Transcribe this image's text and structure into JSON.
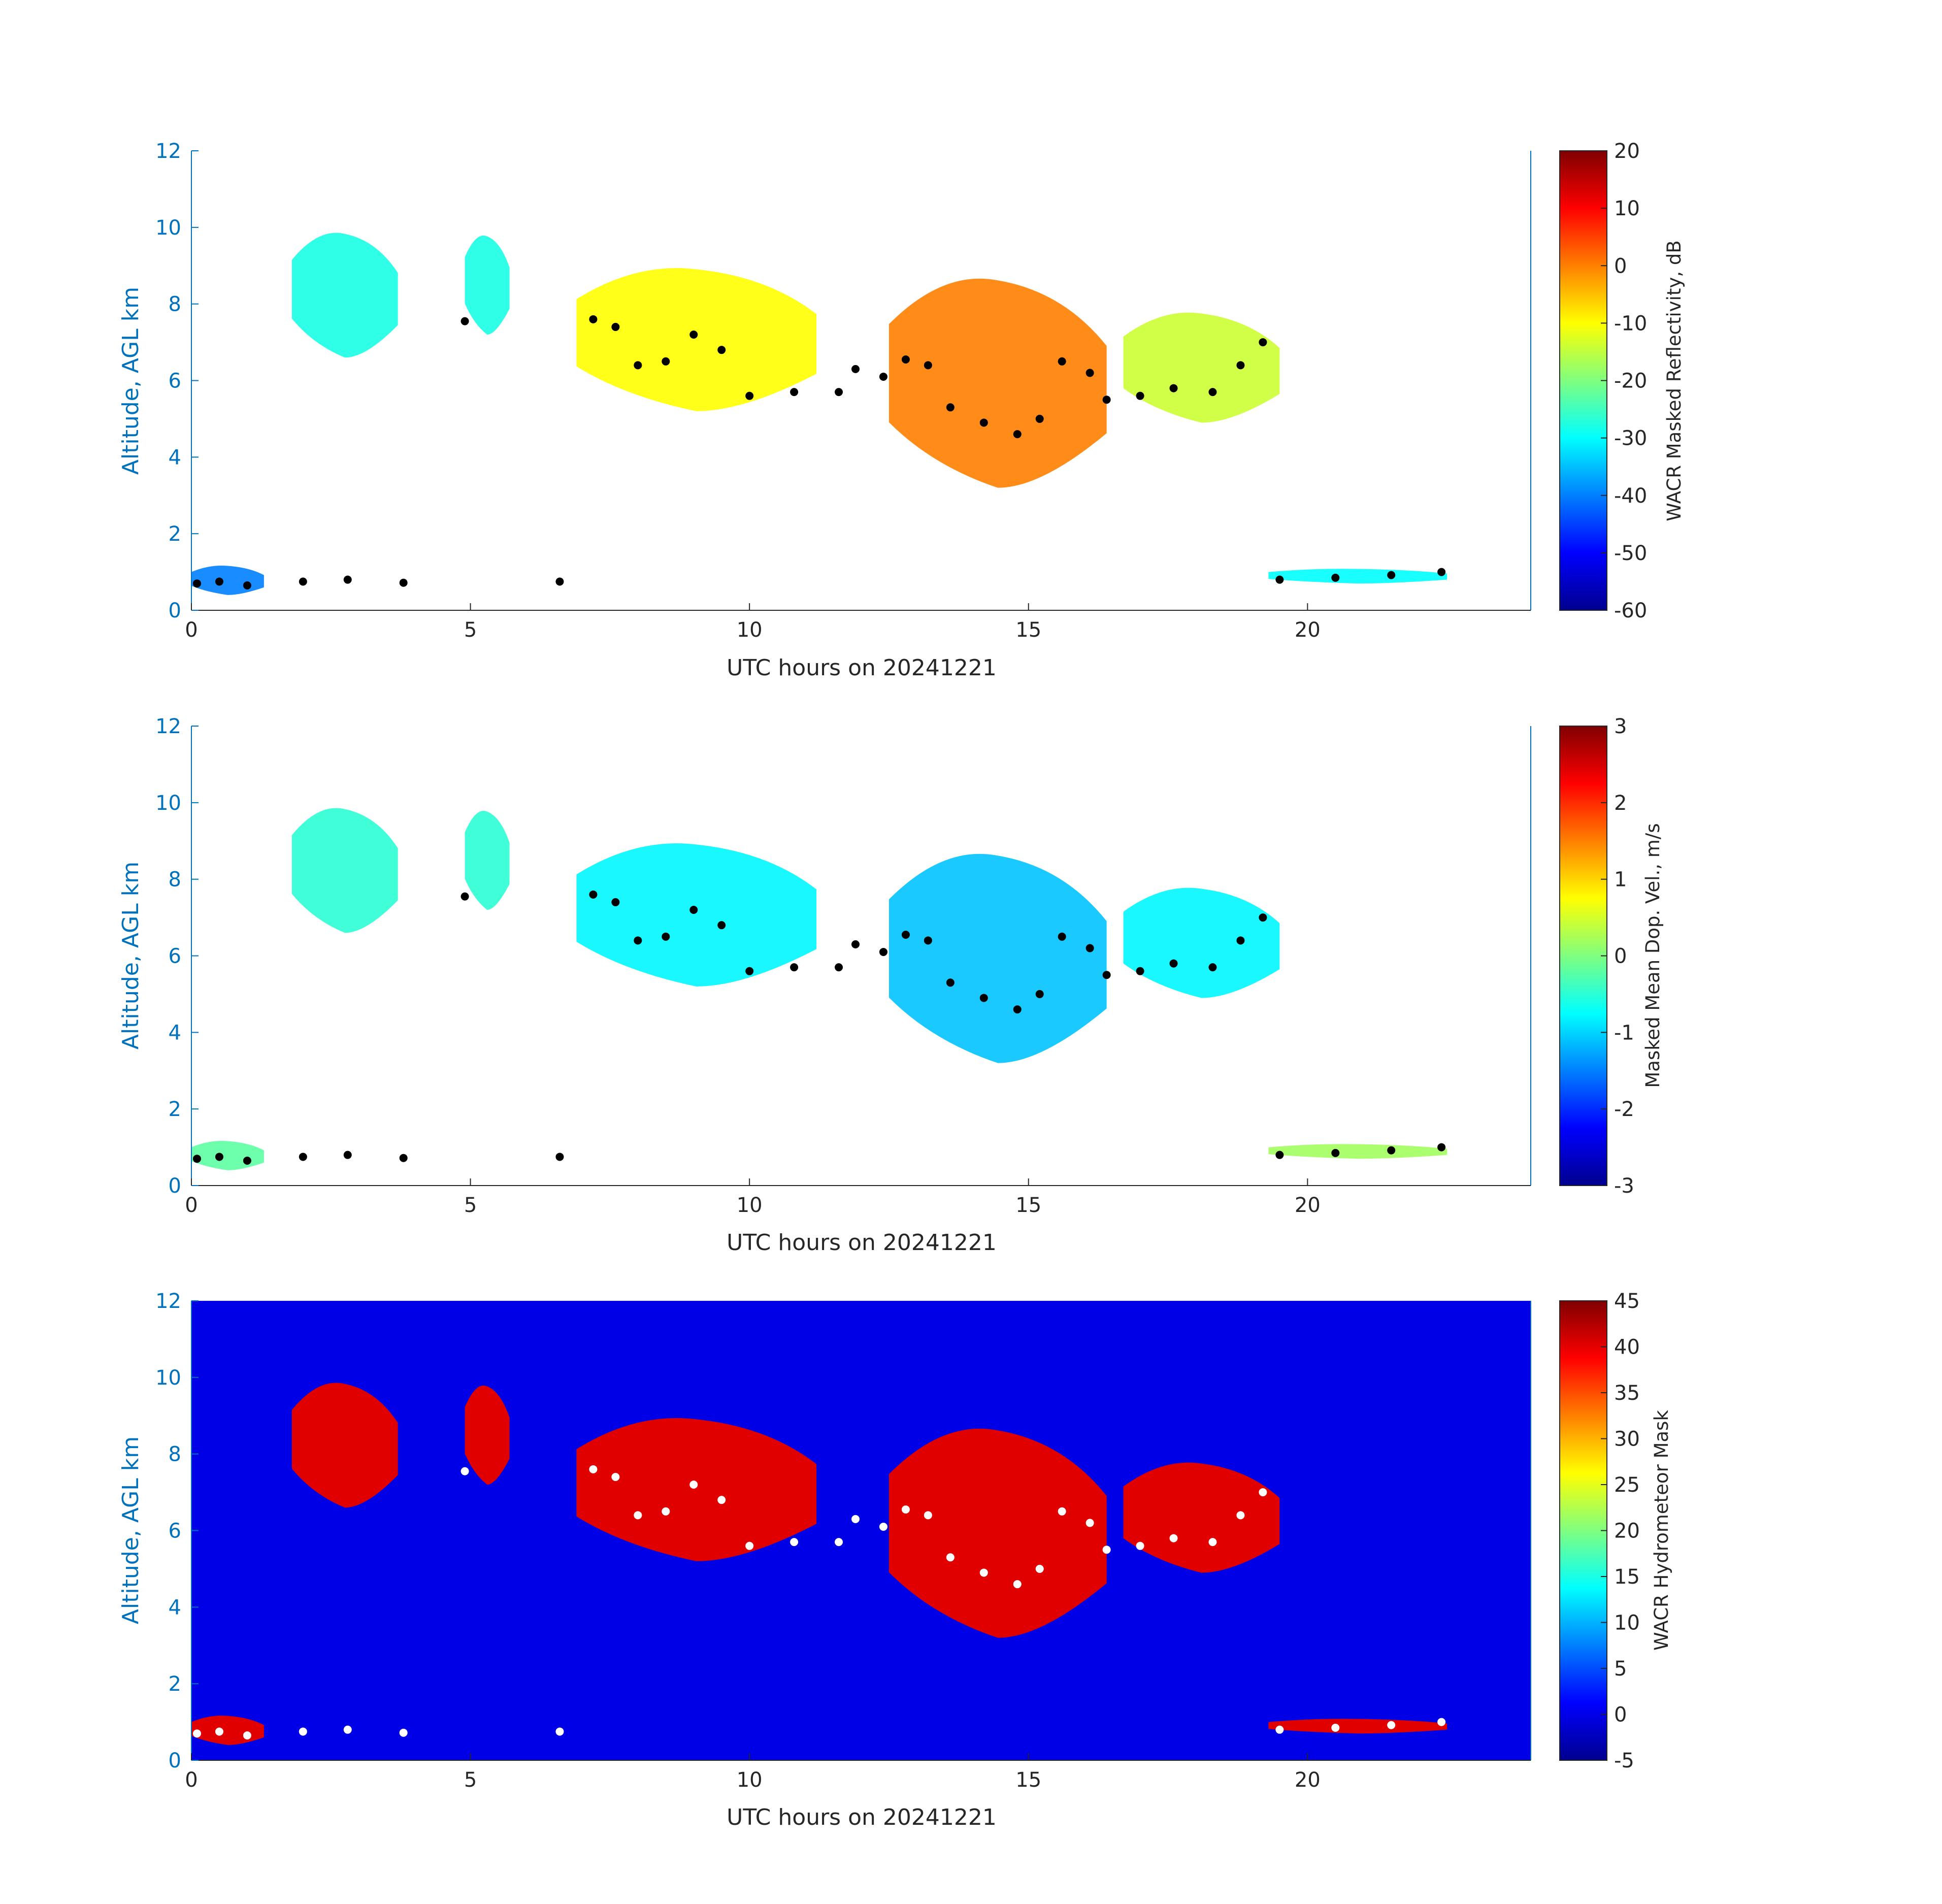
{
  "chart_data": [
    {
      "type": "heatmap",
      "panel": "Masked Reflectivity",
      "xlabel": "UTC hours on 20241221",
      "ylabel": "Altitude, AGL km",
      "xlim": [
        0,
        24
      ],
      "ylim": [
        0,
        12
      ],
      "xticks": [
        "0",
        "5",
        "10",
        "15",
        "20"
      ],
      "yticks": [
        "0",
        "2",
        "4",
        "6",
        "8",
        "10",
        "12"
      ],
      "colorbar": {
        "label": "WACR Masked Reflectivity, dB",
        "range": [
          -60,
          20
        ],
        "ticks": [
          "20",
          "10",
          "0",
          "-10",
          "-20",
          "-30",
          "-40",
          "-50",
          "-60"
        ]
      },
      "cloud_regions": [
        {
          "x0": 1.8,
          "x1": 3.7,
          "bottom": 6.6,
          "top": 10.0,
          "value": -28
        },
        {
          "x0": 4.9,
          "x1": 5.7,
          "bottom": 7.2,
          "top": 9.9,
          "value": -28
        },
        {
          "x0": 6.9,
          "x1": 11.2,
          "bottom": 5.2,
          "top": 9.1,
          "value": -10
        },
        {
          "x0": 12.5,
          "x1": 16.4,
          "bottom": 3.2,
          "top": 8.9,
          "value": 0
        },
        {
          "x0": 16.7,
          "x1": 19.5,
          "bottom": 4.9,
          "top": 7.9,
          "value": -14
        },
        {
          "x0": 0.0,
          "x1": 1.3,
          "bottom": 0.4,
          "top": 1.2,
          "value": -40
        },
        {
          "x0": 19.3,
          "x1": 22.5,
          "bottom": 0.7,
          "top": 1.1,
          "value": -30
        }
      ],
      "cloud_base_points": [
        {
          "x": 0.1,
          "y": 0.7
        },
        {
          "x": 0.5,
          "y": 0.75
        },
        {
          "x": 1.0,
          "y": 0.65
        },
        {
          "x": 2.0,
          "y": 0.75
        },
        {
          "x": 2.8,
          "y": 0.8
        },
        {
          "x": 3.8,
          "y": 0.72
        },
        {
          "x": 4.9,
          "y": 7.55
        },
        {
          "x": 6.6,
          "y": 0.75
        },
        {
          "x": 7.2,
          "y": 7.6
        },
        {
          "x": 7.6,
          "y": 7.4
        },
        {
          "x": 8.0,
          "y": 6.4
        },
        {
          "x": 8.5,
          "y": 6.5
        },
        {
          "x": 9.0,
          "y": 7.2
        },
        {
          "x": 9.5,
          "y": 6.8
        },
        {
          "x": 10.0,
          "y": 5.6
        },
        {
          "x": 10.8,
          "y": 5.7
        },
        {
          "x": 11.6,
          "y": 5.7
        },
        {
          "x": 11.9,
          "y": 6.3
        },
        {
          "x": 12.4,
          "y": 6.1
        },
        {
          "x": 12.8,
          "y": 6.55
        },
        {
          "x": 13.2,
          "y": 6.4
        },
        {
          "x": 13.6,
          "y": 5.3
        },
        {
          "x": 14.2,
          "y": 4.9
        },
        {
          "x": 14.8,
          "y": 4.6
        },
        {
          "x": 15.2,
          "y": 5.0
        },
        {
          "x": 15.6,
          "y": 6.5
        },
        {
          "x": 16.1,
          "y": 6.2
        },
        {
          "x": 16.4,
          "y": 5.5
        },
        {
          "x": 17.0,
          "y": 5.6
        },
        {
          "x": 17.6,
          "y": 5.8
        },
        {
          "x": 18.3,
          "y": 5.7
        },
        {
          "x": 18.8,
          "y": 6.4
        },
        {
          "x": 19.2,
          "y": 7.0
        },
        {
          "x": 19.5,
          "y": 0.8
        },
        {
          "x": 20.5,
          "y": 0.85
        },
        {
          "x": 21.5,
          "y": 0.92
        },
        {
          "x": 22.4,
          "y": 1.0
        }
      ]
    },
    {
      "type": "heatmap",
      "panel": "Masked Mean Doppler Velocity",
      "xlabel": "UTC hours on 20241221",
      "ylabel": "Altitude, AGL km",
      "xlim": [
        0,
        24
      ],
      "ylim": [
        0,
        12
      ],
      "xticks": [
        "0",
        "5",
        "10",
        "15",
        "20"
      ],
      "yticks": [
        "0",
        "2",
        "4",
        "6",
        "8",
        "10",
        "12"
      ],
      "colorbar": {
        "label": "Masked Mean Dop. Vel., m/s",
        "range": [
          -3,
          3
        ],
        "ticks": [
          "3",
          "2",
          "1",
          "0",
          "-1",
          "-2",
          "-3"
        ]
      },
      "cloud_regions": [
        {
          "x0": 1.8,
          "x1": 3.7,
          "bottom": 6.6,
          "top": 10.0,
          "value": -0.5
        },
        {
          "x0": 4.9,
          "x1": 5.7,
          "bottom": 7.2,
          "top": 9.9,
          "value": -0.5
        },
        {
          "x0": 6.9,
          "x1": 11.2,
          "bottom": 5.2,
          "top": 9.1,
          "value": -0.8
        },
        {
          "x0": 12.5,
          "x1": 16.4,
          "bottom": 3.2,
          "top": 8.9,
          "value": -1.1
        },
        {
          "x0": 16.7,
          "x1": 19.5,
          "bottom": 4.9,
          "top": 7.9,
          "value": -0.8
        },
        {
          "x0": 0.0,
          "x1": 1.3,
          "bottom": 0.4,
          "top": 1.2,
          "value": -0.2
        },
        {
          "x0": 19.3,
          "x1": 22.5,
          "bottom": 0.7,
          "top": 1.1,
          "value": 0.2
        }
      ]
    },
    {
      "type": "heatmap",
      "panel": "Hydrometeor Mask",
      "xlabel": "UTC hours on 20241221",
      "ylabel": "Altitude, AGL km",
      "xlim": [
        0,
        24
      ],
      "ylim": [
        0,
        12
      ],
      "xticks": [
        "0",
        "5",
        "10",
        "15",
        "20"
      ],
      "yticks": [
        "0",
        "2",
        "4",
        "6",
        "8",
        "10",
        "12"
      ],
      "background_value": 0,
      "hydrometeor_value": 40,
      "colorbar": {
        "label": "WACR Hydrometeor Mask",
        "range": [
          -5,
          45
        ],
        "ticks": [
          "45",
          "40",
          "35",
          "30",
          "25",
          "20",
          "15",
          "10",
          "5",
          "0",
          "-5"
        ]
      }
    }
  ],
  "colors": {
    "axis_blue": "#0072bd",
    "mask_background": "#0000e6",
    "mask_hydrometeor": "#e00000",
    "cloud_base_marker_top": "#000000",
    "cloud_base_marker_bottom": "#ffffff"
  }
}
